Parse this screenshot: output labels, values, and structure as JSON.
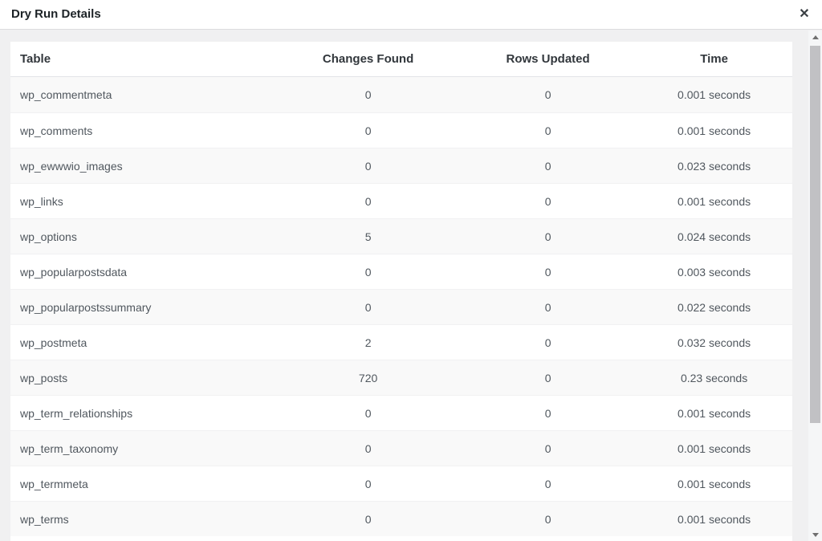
{
  "modal": {
    "title": "Dry Run Details",
    "close_icon": "✕"
  },
  "table": {
    "columns": [
      "Table",
      "Changes Found",
      "Rows Updated",
      "Time"
    ],
    "rows": [
      {
        "table": "wp_commentmeta",
        "changes_found": "0",
        "rows_updated": "0",
        "time": "0.001 seconds"
      },
      {
        "table": "wp_comments",
        "changes_found": "0",
        "rows_updated": "0",
        "time": "0.001 seconds"
      },
      {
        "table": "wp_ewwwio_images",
        "changes_found": "0",
        "rows_updated": "0",
        "time": "0.023 seconds"
      },
      {
        "table": "wp_links",
        "changes_found": "0",
        "rows_updated": "0",
        "time": "0.001 seconds"
      },
      {
        "table": "wp_options",
        "changes_found": "5",
        "rows_updated": "0",
        "time": "0.024 seconds"
      },
      {
        "table": "wp_popularpostsdata",
        "changes_found": "0",
        "rows_updated": "0",
        "time": "0.003 seconds"
      },
      {
        "table": "wp_popularpostssummary",
        "changes_found": "0",
        "rows_updated": "0",
        "time": "0.022 seconds"
      },
      {
        "table": "wp_postmeta",
        "changes_found": "2",
        "rows_updated": "0",
        "time": "0.032 seconds"
      },
      {
        "table": "wp_posts",
        "changes_found": "720",
        "rows_updated": "0",
        "time": "0.23 seconds"
      },
      {
        "table": "wp_term_relationships",
        "changes_found": "0",
        "rows_updated": "0",
        "time": "0.001 seconds"
      },
      {
        "table": "wp_term_taxonomy",
        "changes_found": "0",
        "rows_updated": "0",
        "time": "0.001 seconds"
      },
      {
        "table": "wp_termmeta",
        "changes_found": "0",
        "rows_updated": "0",
        "time": "0.001 seconds"
      },
      {
        "table": "wp_terms",
        "changes_found": "0",
        "rows_updated": "0",
        "time": "0.001 seconds"
      }
    ]
  },
  "colors": {
    "body_background": "#f0f0f1",
    "row_stripe": "#f9f9f9",
    "header_text": "#32373c",
    "cell_text": "#50575e",
    "scrollbar_thumb": "#c1c1c4",
    "header_border": "#dcdcde"
  }
}
